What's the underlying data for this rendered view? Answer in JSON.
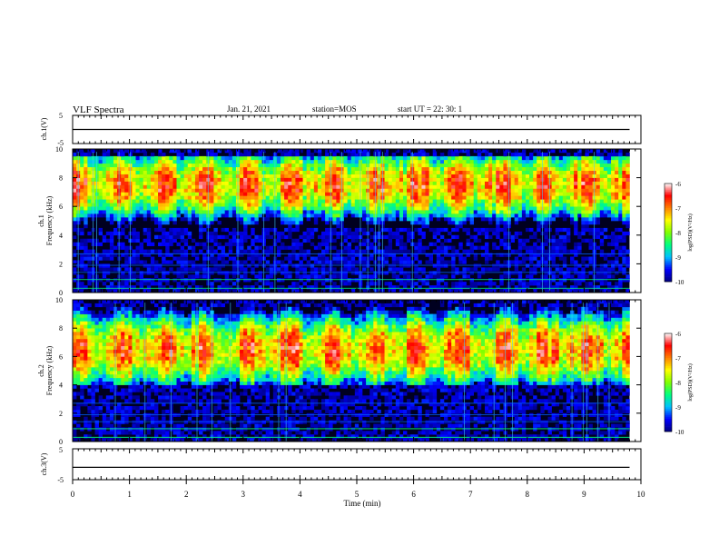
{
  "header": {
    "title": "VLF Spectra",
    "date": "Jan. 21, 2021",
    "station": "station=MOS",
    "start": "start  UT =   22: 30: 1"
  },
  "colors": {
    "colormap": [
      "#000000",
      "#000080",
      "#0000ff",
      "#00c0ff",
      "#00ff80",
      "#80ff00",
      "#ffff00",
      "#ff8000",
      "#ff0000",
      "#ffffff"
    ],
    "axes": "#000000",
    "background": "#ffffff"
  },
  "chart_data": [
    {
      "type": "line",
      "name": "ch1-waveform",
      "ylabel": "ch.1(V)",
      "ylim": [
        -5,
        5
      ],
      "yticks": [
        "5",
        "-5"
      ],
      "x": [
        0,
        9.8
      ],
      "y": [
        0,
        0
      ]
    },
    {
      "type": "heatmap",
      "name": "ch1-spectrogram",
      "ylabel": "ch.1\nFrequency (kHz)",
      "ylim": [
        0,
        10
      ],
      "yticks": [
        "0",
        "2",
        "4",
        "6",
        "8",
        "10"
      ],
      "xlim": [
        0,
        10
      ],
      "data_extent_min": 9.8,
      "colorbar": {
        "label": "log(PSD)(V²/Hz)",
        "range": [
          -10,
          -6
        ],
        "ticks": [
          "-6",
          "-7",
          "-8",
          "-9",
          "-10"
        ]
      },
      "band_khz": [
        4.5,
        9.5
      ],
      "band_peak_khz": 7.5,
      "band_peak_level": -6.5
    },
    {
      "type": "heatmap",
      "name": "ch2-spectrogram",
      "ylabel": "ch.2\nFrequency (kHz)",
      "ylim": [
        0,
        10
      ],
      "yticks": [
        "0",
        "2",
        "4",
        "6",
        "8",
        "10"
      ],
      "xlim": [
        0,
        10
      ],
      "data_extent_min": 9.8,
      "colorbar": {
        "label": "log(PSD)(V²/Hz)",
        "range": [
          -10,
          -6
        ],
        "ticks": [
          "-6",
          "-7",
          "-8",
          "-9",
          "-10"
        ]
      },
      "band_khz": [
        4.0,
        9.5
      ],
      "band_peak_khz": 6.5,
      "band_peak_level": -6.5
    },
    {
      "type": "line",
      "name": "ch3-waveform",
      "ylabel": "ch.3(V)",
      "ylim": [
        -5,
        5
      ],
      "yticks": [
        "5",
        "-5"
      ],
      "x": [
        0,
        9.8
      ],
      "y": [
        -1,
        -1
      ]
    }
  ],
  "x_axis": {
    "label": "Time  (min)",
    "ticks": [
      "0",
      "1",
      "2",
      "3",
      "4",
      "5",
      "6",
      "7",
      "8",
      "9",
      "10"
    ]
  }
}
